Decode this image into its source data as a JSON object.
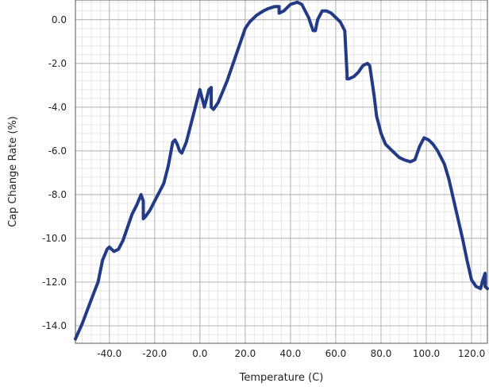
{
  "chart_data": {
    "type": "line",
    "title": "",
    "xlabel": "Temperature (C)",
    "ylabel": "Cap Change Rate (%)",
    "xlim": [
      -55,
      127
    ],
    "ylim": [
      -14.8,
      0.9
    ],
    "grid": true,
    "x_ticks": [
      -40,
      -20,
      0,
      20,
      40,
      60,
      80,
      100,
      120
    ],
    "y_ticks": [
      0,
      -2,
      -4,
      -6,
      -8,
      -10,
      -12,
      -14
    ],
    "x_tick_labels": [
      "-40.0",
      "-20.0",
      "0.0",
      "20.0",
      "40.0",
      "60.0",
      "80.0",
      "100.0",
      "120.0"
    ],
    "y_tick_labels": [
      "0.0",
      "-2.0",
      "-4.0",
      "-6.0",
      "-8.0",
      "-10.0",
      "-12.0",
      "-14.0"
    ],
    "line_color": "#233a86",
    "series": [
      {
        "x": [
          -55,
          -52,
          -48,
          -45,
          -43,
          -41,
          -40,
          -38,
          -36,
          -34,
          -32,
          -30,
          -28,
          -26,
          -25,
          -25,
          -24,
          -22,
          -20,
          -18,
          -16,
          -14,
          -12,
          -11,
          -10,
          -9,
          -8,
          -6,
          -4,
          -2,
          0,
          2,
          3,
          4,
          5,
          5,
          6,
          8,
          10,
          12,
          14,
          16,
          18,
          20,
          22,
          25,
          28,
          30,
          33,
          35,
          35,
          37,
          40,
          43,
          45,
          48,
          50,
          51,
          52,
          54,
          56,
          58,
          60,
          62,
          64,
          65,
          65,
          66,
          68,
          70,
          72,
          74,
          75,
          76,
          77,
          78,
          80,
          82,
          85,
          88,
          90,
          93,
          95,
          97,
          99,
          101,
          103,
          105,
          108,
          110,
          112,
          114,
          116,
          118,
          120,
          122,
          124,
          125,
          126,
          126,
          127
        ],
        "y": [
          -14.6,
          -13.9,
          -12.8,
          -12.0,
          -11.0,
          -10.5,
          -10.4,
          -10.6,
          -10.5,
          -10.1,
          -9.5,
          -8.9,
          -8.5,
          -8.0,
          -8.3,
          -9.1,
          -9.0,
          -8.7,
          -8.3,
          -7.9,
          -7.5,
          -6.7,
          -5.6,
          -5.5,
          -5.7,
          -6.0,
          -6.1,
          -5.6,
          -4.8,
          -4.0,
          -3.2,
          -4.0,
          -3.6,
          -3.2,
          -3.1,
          -4.0,
          -4.1,
          -3.8,
          -3.3,
          -2.8,
          -2.2,
          -1.6,
          -1.0,
          -0.4,
          -0.1,
          0.2,
          0.4,
          0.5,
          0.6,
          0.6,
          0.3,
          0.4,
          0.7,
          0.8,
          0.7,
          0.1,
          -0.5,
          -0.5,
          0.0,
          0.4,
          0.4,
          0.3,
          0.1,
          -0.1,
          -0.5,
          -2.5,
          -2.7,
          -2.7,
          -2.6,
          -2.4,
          -2.1,
          -2.0,
          -2.1,
          -2.8,
          -3.5,
          -4.4,
          -5.2,
          -5.7,
          -6.0,
          -6.3,
          -6.4,
          -6.5,
          -6.4,
          -5.8,
          -5.4,
          -5.5,
          -5.7,
          -6.0,
          -6.6,
          -7.3,
          -8.2,
          -9.1,
          -10.0,
          -11.0,
          -11.9,
          -12.2,
          -12.3,
          -11.9,
          -11.6,
          -12.2,
          -12.3
        ]
      }
    ]
  }
}
